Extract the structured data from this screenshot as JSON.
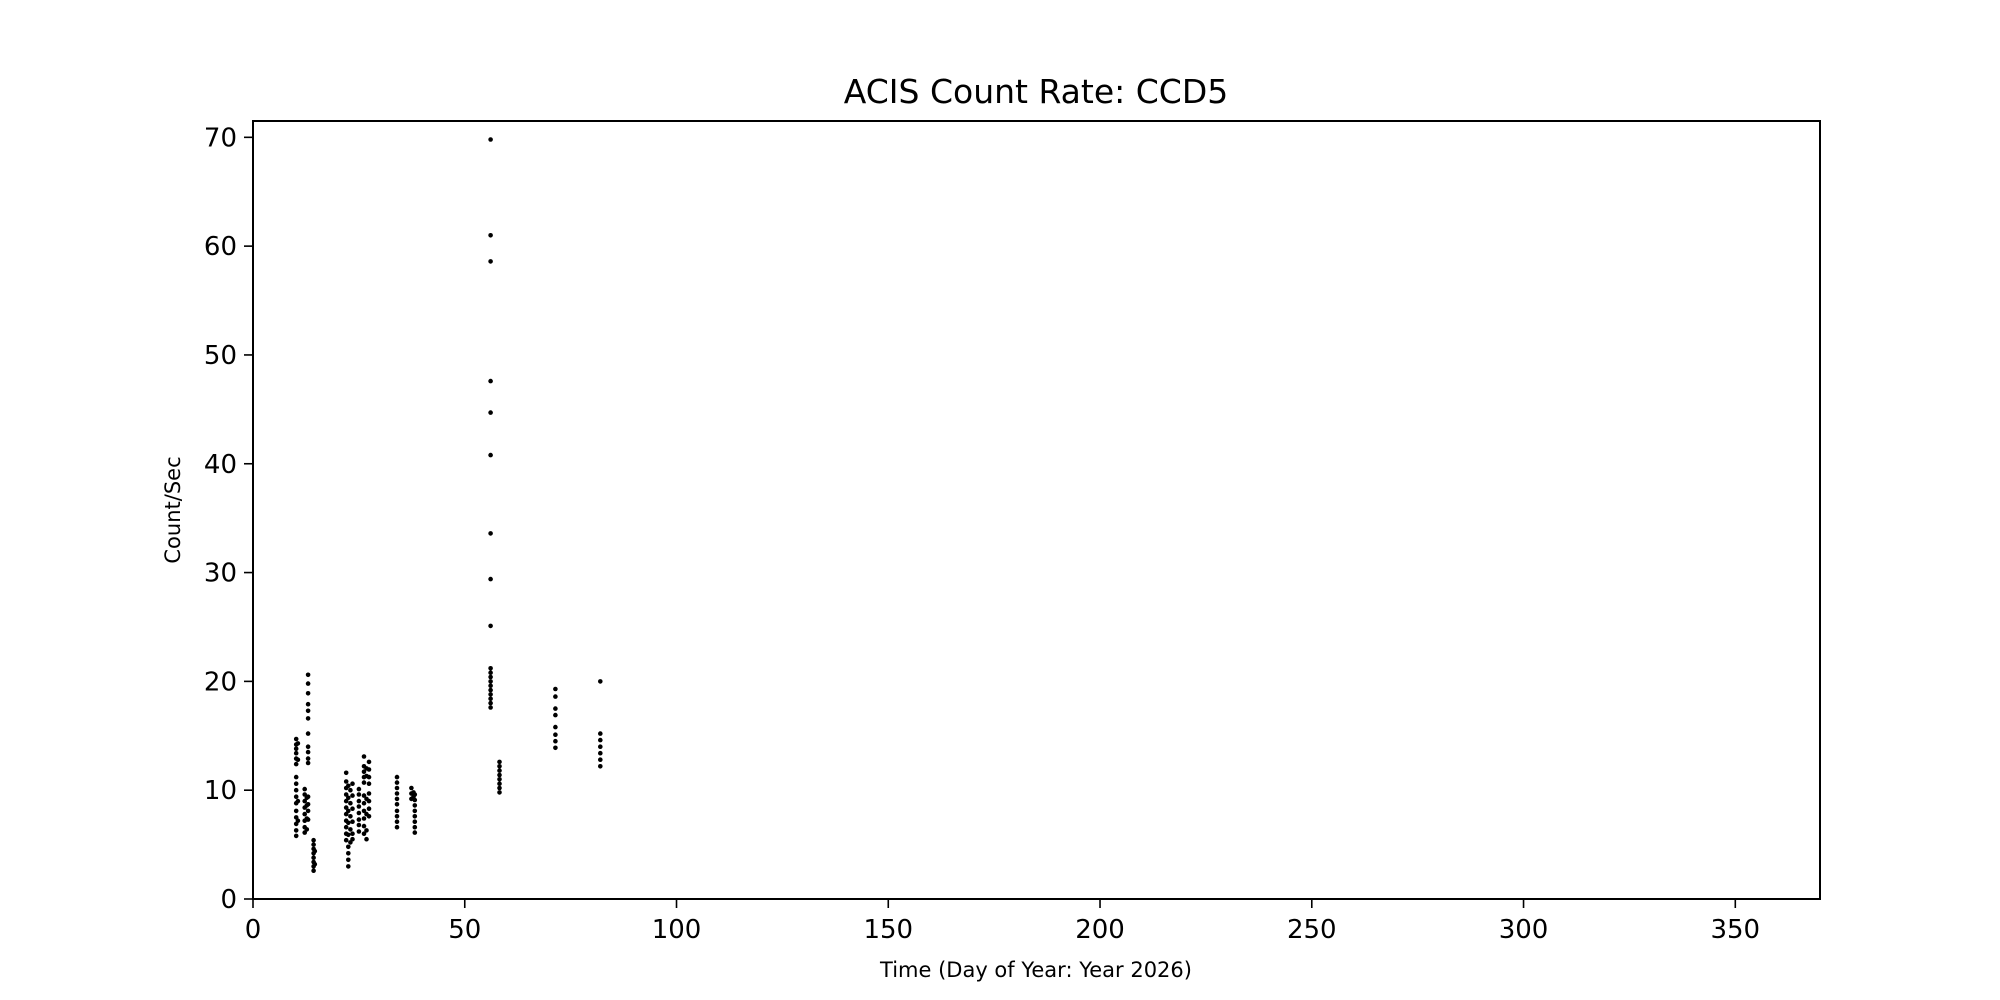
{
  "chart_data": {
    "type": "scatter",
    "title": "ACIS Count Rate: CCD5",
    "xlabel": "Time (Day of Year: Year 2026)",
    "ylabel": "Count/Sec",
    "xlim": [
      0,
      370
    ],
    "ylim": [
      0,
      71.5
    ],
    "xticks": [
      0,
      50,
      100,
      150,
      200,
      250,
      300,
      350
    ],
    "yticks": [
      0,
      10,
      20,
      30,
      40,
      50,
      60,
      70
    ],
    "grid": false,
    "marker_color": "#000000",
    "points": [
      [
        10.2,
        14.7
      ],
      [
        10.2,
        14.2
      ],
      [
        10.2,
        13.8
      ],
      [
        10.2,
        13.4
      ],
      [
        10.2,
        12.9
      ],
      [
        10.2,
        12.4
      ],
      [
        10.2,
        11.2
      ],
      [
        10.2,
        10.6
      ],
      [
        10.2,
        10.0
      ],
      [
        10.2,
        9.4
      ],
      [
        10.2,
        8.8
      ],
      [
        10.2,
        8.1
      ],
      [
        10.2,
        7.5
      ],
      [
        10.2,
        6.9
      ],
      [
        10.2,
        6.3
      ],
      [
        10.2,
        5.8
      ],
      [
        10.6,
        14.3
      ],
      [
        10.6,
        12.8
      ],
      [
        10.6,
        9.0
      ],
      [
        10.6,
        7.2
      ],
      [
        12.2,
        10.1
      ],
      [
        12.2,
        9.6
      ],
      [
        12.2,
        9.0
      ],
      [
        12.2,
        8.4
      ],
      [
        12.2,
        7.8
      ],
      [
        12.2,
        7.2
      ],
      [
        12.2,
        6.6
      ],
      [
        12.2,
        6.1
      ],
      [
        12.7,
        9.3
      ],
      [
        12.7,
        8.6
      ],
      [
        12.7,
        7.4
      ],
      [
        12.7,
        6.4
      ],
      [
        13.0,
        20.6
      ],
      [
        13.0,
        19.8
      ],
      [
        13.0,
        18.9
      ],
      [
        13.0,
        17.9
      ],
      [
        13.0,
        17.3
      ],
      [
        13.0,
        16.6
      ],
      [
        13.0,
        15.2
      ],
      [
        13.0,
        14.0
      ],
      [
        13.0,
        13.5
      ],
      [
        13.0,
        12.9
      ],
      [
        13.0,
        12.5
      ],
      [
        13.0,
        9.4
      ],
      [
        13.0,
        8.7
      ],
      [
        13.0,
        8.1
      ],
      [
        13.0,
        7.3
      ],
      [
        14.3,
        5.4
      ],
      [
        14.3,
        5.0
      ],
      [
        14.3,
        4.6
      ],
      [
        14.3,
        4.2
      ],
      [
        14.3,
        3.8
      ],
      [
        14.3,
        3.4
      ],
      [
        14.3,
        3.0
      ],
      [
        14.3,
        2.6
      ],
      [
        14.6,
        4.4
      ],
      [
        14.6,
        3.2
      ],
      [
        22.0,
        11.6
      ],
      [
        22.0,
        10.8
      ],
      [
        22.0,
        10.2
      ],
      [
        22.0,
        9.6
      ],
      [
        22.0,
        9.0
      ],
      [
        22.0,
        8.4
      ],
      [
        22.0,
        7.8
      ],
      [
        22.0,
        7.2
      ],
      [
        22.0,
        6.6
      ],
      [
        22.0,
        6.0
      ],
      [
        22.0,
        5.4
      ],
      [
        22.5,
        10.4
      ],
      [
        22.5,
        9.3
      ],
      [
        22.5,
        8.1
      ],
      [
        22.5,
        7.0
      ],
      [
        22.5,
        5.9
      ],
      [
        22.5,
        4.8
      ],
      [
        22.5,
        4.2
      ],
      [
        22.5,
        3.6
      ],
      [
        22.5,
        3.0
      ],
      [
        23.0,
        10.0
      ],
      [
        23.0,
        8.8
      ],
      [
        23.0,
        7.6
      ],
      [
        23.0,
        6.4
      ],
      [
        23.0,
        5.2
      ],
      [
        23.5,
        10.6
      ],
      [
        23.5,
        9.5
      ],
      [
        23.5,
        8.3
      ],
      [
        23.5,
        7.1
      ],
      [
        23.5,
        6.0
      ],
      [
        23.5,
        5.5
      ],
      [
        25.0,
        10.1
      ],
      [
        25.0,
        9.6
      ],
      [
        25.0,
        9.0
      ],
      [
        25.0,
        8.5
      ],
      [
        25.0,
        7.9
      ],
      [
        25.0,
        7.3
      ],
      [
        25.0,
        6.8
      ],
      [
        25.0,
        6.2
      ],
      [
        26.2,
        13.1
      ],
      [
        26.2,
        12.2
      ],
      [
        26.2,
        11.7
      ],
      [
        26.2,
        11.2
      ],
      [
        26.2,
        10.7
      ],
      [
        26.2,
        9.5
      ],
      [
        26.2,
        8.8
      ],
      [
        26.2,
        8.1
      ],
      [
        26.2,
        7.4
      ],
      [
        26.2,
        6.7
      ],
      [
        26.2,
        6.0
      ],
      [
        26.8,
        12.0
      ],
      [
        26.8,
        11.3
      ],
      [
        26.8,
        9.2
      ],
      [
        26.8,
        7.8
      ],
      [
        26.8,
        6.3
      ],
      [
        26.8,
        5.5
      ],
      [
        27.4,
        12.6
      ],
      [
        27.4,
        11.9
      ],
      [
        27.4,
        11.2
      ],
      [
        27.4,
        10.6
      ],
      [
        27.4,
        9.7
      ],
      [
        27.4,
        9.0
      ],
      [
        27.4,
        8.3
      ],
      [
        27.4,
        7.6
      ],
      [
        34.0,
        11.2
      ],
      [
        34.0,
        10.7
      ],
      [
        34.0,
        10.2
      ],
      [
        34.0,
        9.7
      ],
      [
        34.0,
        9.2
      ],
      [
        34.0,
        8.7
      ],
      [
        34.0,
        8.1
      ],
      [
        34.0,
        7.6
      ],
      [
        34.0,
        7.1
      ],
      [
        34.0,
        6.6
      ],
      [
        37.4,
        10.2
      ],
      [
        37.4,
        9.7
      ],
      [
        37.4,
        9.2
      ],
      [
        37.9,
        9.8
      ],
      [
        37.9,
        9.4
      ],
      [
        38.2,
        9.6
      ],
      [
        38.2,
        9.1
      ],
      [
        38.2,
        8.6
      ],
      [
        38.2,
        8.1
      ],
      [
        38.2,
        7.6
      ],
      [
        38.2,
        7.1
      ],
      [
        38.2,
        6.6
      ],
      [
        38.2,
        6.1
      ],
      [
        56.1,
        69.8
      ],
      [
        56.1,
        61.0
      ],
      [
        56.1,
        58.6
      ],
      [
        56.1,
        47.6
      ],
      [
        56.1,
        44.7
      ],
      [
        56.1,
        40.8
      ],
      [
        56.1,
        33.6
      ],
      [
        56.1,
        29.4
      ],
      [
        56.1,
        25.1
      ],
      [
        56.1,
        21.2
      ],
      [
        56.1,
        20.8
      ],
      [
        56.1,
        20.4
      ],
      [
        56.1,
        20.0
      ],
      [
        56.1,
        19.6
      ],
      [
        56.1,
        19.2
      ],
      [
        56.1,
        18.8
      ],
      [
        56.1,
        18.4
      ],
      [
        56.1,
        18.0
      ],
      [
        56.1,
        17.6
      ],
      [
        58.2,
        12.6
      ],
      [
        58.2,
        12.2
      ],
      [
        58.2,
        11.8
      ],
      [
        58.2,
        11.4
      ],
      [
        58.2,
        11.0
      ],
      [
        58.2,
        10.6
      ],
      [
        58.2,
        10.2
      ],
      [
        58.2,
        9.8
      ],
      [
        71.4,
        19.3
      ],
      [
        71.4,
        18.6
      ],
      [
        71.4,
        17.5
      ],
      [
        71.4,
        16.9
      ],
      [
        71.4,
        15.8
      ],
      [
        71.4,
        15.1
      ],
      [
        71.4,
        14.5
      ],
      [
        71.4,
        13.9
      ],
      [
        82.0,
        20.0
      ],
      [
        82.0,
        15.2
      ],
      [
        82.0,
        14.6
      ],
      [
        82.0,
        14.0
      ],
      [
        82.0,
        13.4
      ],
      [
        82.0,
        12.8
      ],
      [
        82.0,
        12.2
      ]
    ]
  }
}
